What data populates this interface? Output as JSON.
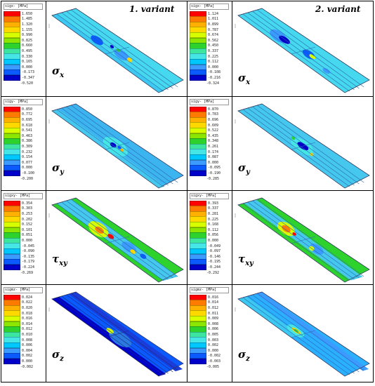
{
  "variant_labels": [
    "1.  variant",
    "2.  variant"
  ],
  "symbols": {
    "x": "x",
    "y": "y",
    "xy": "xy",
    "z": "z",
    "sigma": "σ",
    "tau": "τ"
  },
  "colors": {
    "scale": [
      "#ff0000",
      "#ff7a00",
      "#ffb000",
      "#ffd800",
      "#d8ff00",
      "#8ce600",
      "#2dd22d",
      "#3ce6a0",
      "#46e6e6",
      "#00c8ff",
      "#3c9bff",
      "#0a5aff",
      "#0000c8"
    ],
    "plate_base": "#2ab0ff"
  },
  "legends": [
    {
      "title": "sigx- [MPa]",
      "values": [
        "1.650",
        "1.485",
        "1.320",
        "1.155",
        "0.990",
        "0.825",
        "0.660",
        "0.495",
        "0.330",
        "0.165",
        "0.000",
        "-0.173",
        "-0.347",
        "-0.520"
      ]
    },
    {
      "title": "sigx- [MPa]",
      "values": [
        "1.124",
        "1.011",
        "0.899",
        "0.787",
        "0.674",
        "0.562",
        "0.450",
        "0.337",
        "0.225",
        "0.112",
        "0.000",
        "-0.108",
        "-0.216",
        "-0.324"
      ]
    },
    {
      "title": "sigy- [MPa]",
      "values": [
        "0.850",
        "0.772",
        "0.695",
        "0.618",
        "0.541",
        "0.463",
        "0.386",
        "0.309",
        "0.232",
        "0.154",
        "0.077",
        "0.000",
        "-0.100",
        "-0.200"
      ]
    },
    {
      "title": "sigy- [MPa]",
      "values": [
        "0.870",
        "0.783",
        "0.696",
        "0.609",
        "0.522",
        "0.435",
        "0.348",
        "0.261",
        "0.174",
        "0.087",
        "0.000",
        "-0.095",
        "-0.190",
        "-0.285"
      ]
    },
    {
      "title": "sigxy- [MPa]",
      "values": [
        "0.354",
        "0.303",
        "0.253",
        "0.202",
        "0.152",
        "0.101",
        "0.051",
        "0.000",
        "-0.045",
        "-0.090",
        "-0.135",
        "-0.179",
        "-0.224",
        "-0.269"
      ]
    },
    {
      "title": "sigxy- [MPa]",
      "values": [
        "0.393",
        "0.337",
        "0.281",
        "0.225",
        "0.168",
        "0.112",
        "0.056",
        "0.000",
        "-0.049",
        "-0.097",
        "-0.146",
        "-0.195",
        "-0.244",
        "-0.292"
      ]
    },
    {
      "title": "sigmz- [MPa]",
      "values": [
        "0.024",
        "0.022",
        "0.020",
        "0.018",
        "0.016",
        "0.014",
        "0.012",
        "0.010",
        "0.008",
        "0.006",
        "0.004",
        "0.002",
        "0.000",
        "-0.002"
      ]
    },
    {
      "title": "sigmz- [MPa]",
      "values": [
        "0.016",
        "0.014",
        "0.012",
        "0.011",
        "0.009",
        "0.008",
        "0.006",
        "0.005",
        "0.003",
        "0.002",
        "0.000",
        "-0.002",
        "-0.003",
        "-0.005"
      ]
    }
  ]
}
